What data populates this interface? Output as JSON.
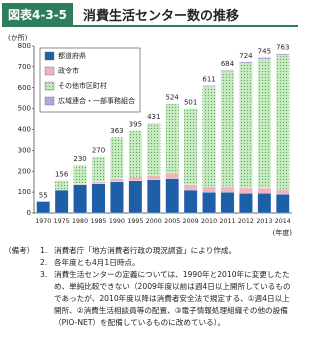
{
  "header": {
    "number": "図表4-3-5",
    "title": "消費生活センター数の推移"
  },
  "chart_data": {
    "type": "stacked_bar",
    "y_label": "(か所)",
    "x_label": "(年度)",
    "categories": [
      "1970",
      "1975",
      "1980",
      "1985",
      "1990",
      "1995",
      "2000",
      "2005",
      "2009",
      "2010",
      "2011",
      "2012",
      "2013",
      "2014"
    ],
    "series": [
      {
        "name": "都道府県",
        "color": "#1f5fa8",
        "values": [
          55,
          110,
          135,
          140,
          150,
          155,
          160,
          165,
          110,
          100,
          100,
          95,
          95,
          90
        ]
      },
      {
        "name": "政令市",
        "color": "#f2b3c0",
        "values": [
          0,
          0,
          5,
          10,
          15,
          18,
          20,
          25,
          25,
          25,
          25,
          25,
          25,
          25
        ]
      },
      {
        "name": "その他市区町村",
        "color": "#c8ebc2",
        "values": [
          0,
          46,
          90,
          120,
          198,
          222,
          251,
          334,
          366,
          480,
          551,
          596,
          617,
          640
        ]
      },
      {
        "name": "広域連合・一部事務組合",
        "color": "#b5a8dc",
        "values": [
          0,
          0,
          0,
          0,
          0,
          0,
          0,
          0,
          0,
          6,
          8,
          8,
          8,
          8
        ]
      }
    ],
    "totals": [
      55,
      156,
      230,
      270,
      363,
      395,
      431,
      524,
      501,
      611,
      684,
      724,
      745,
      763
    ],
    "ylim": [
      0,
      800
    ],
    "yticks": [
      0,
      100,
      200,
      300,
      400,
      500,
      600,
      700,
      800
    ],
    "legend": "top-left"
  },
  "notes": {
    "label": "（備考）",
    "items": [
      {
        "number": "1.",
        "text": "消費者庁「地方消費者行政の現況調査」により作成。"
      },
      {
        "number": "2.",
        "text": "各年度とも4月1日時点。"
      },
      {
        "number": "3.",
        "text": "消費生活センターの定義については、1990年と2010年に変更したため、単純比較できない（2009年度以前は週4日以上開所しているものであったが、2010年度以降は消費者安全法で規定する、①週4日以上開所、②消費生活相談員等の配置、③電子情報処理組織その他の設備（PIO-NET）を配備しているものに改めている）。"
      }
    ]
  }
}
